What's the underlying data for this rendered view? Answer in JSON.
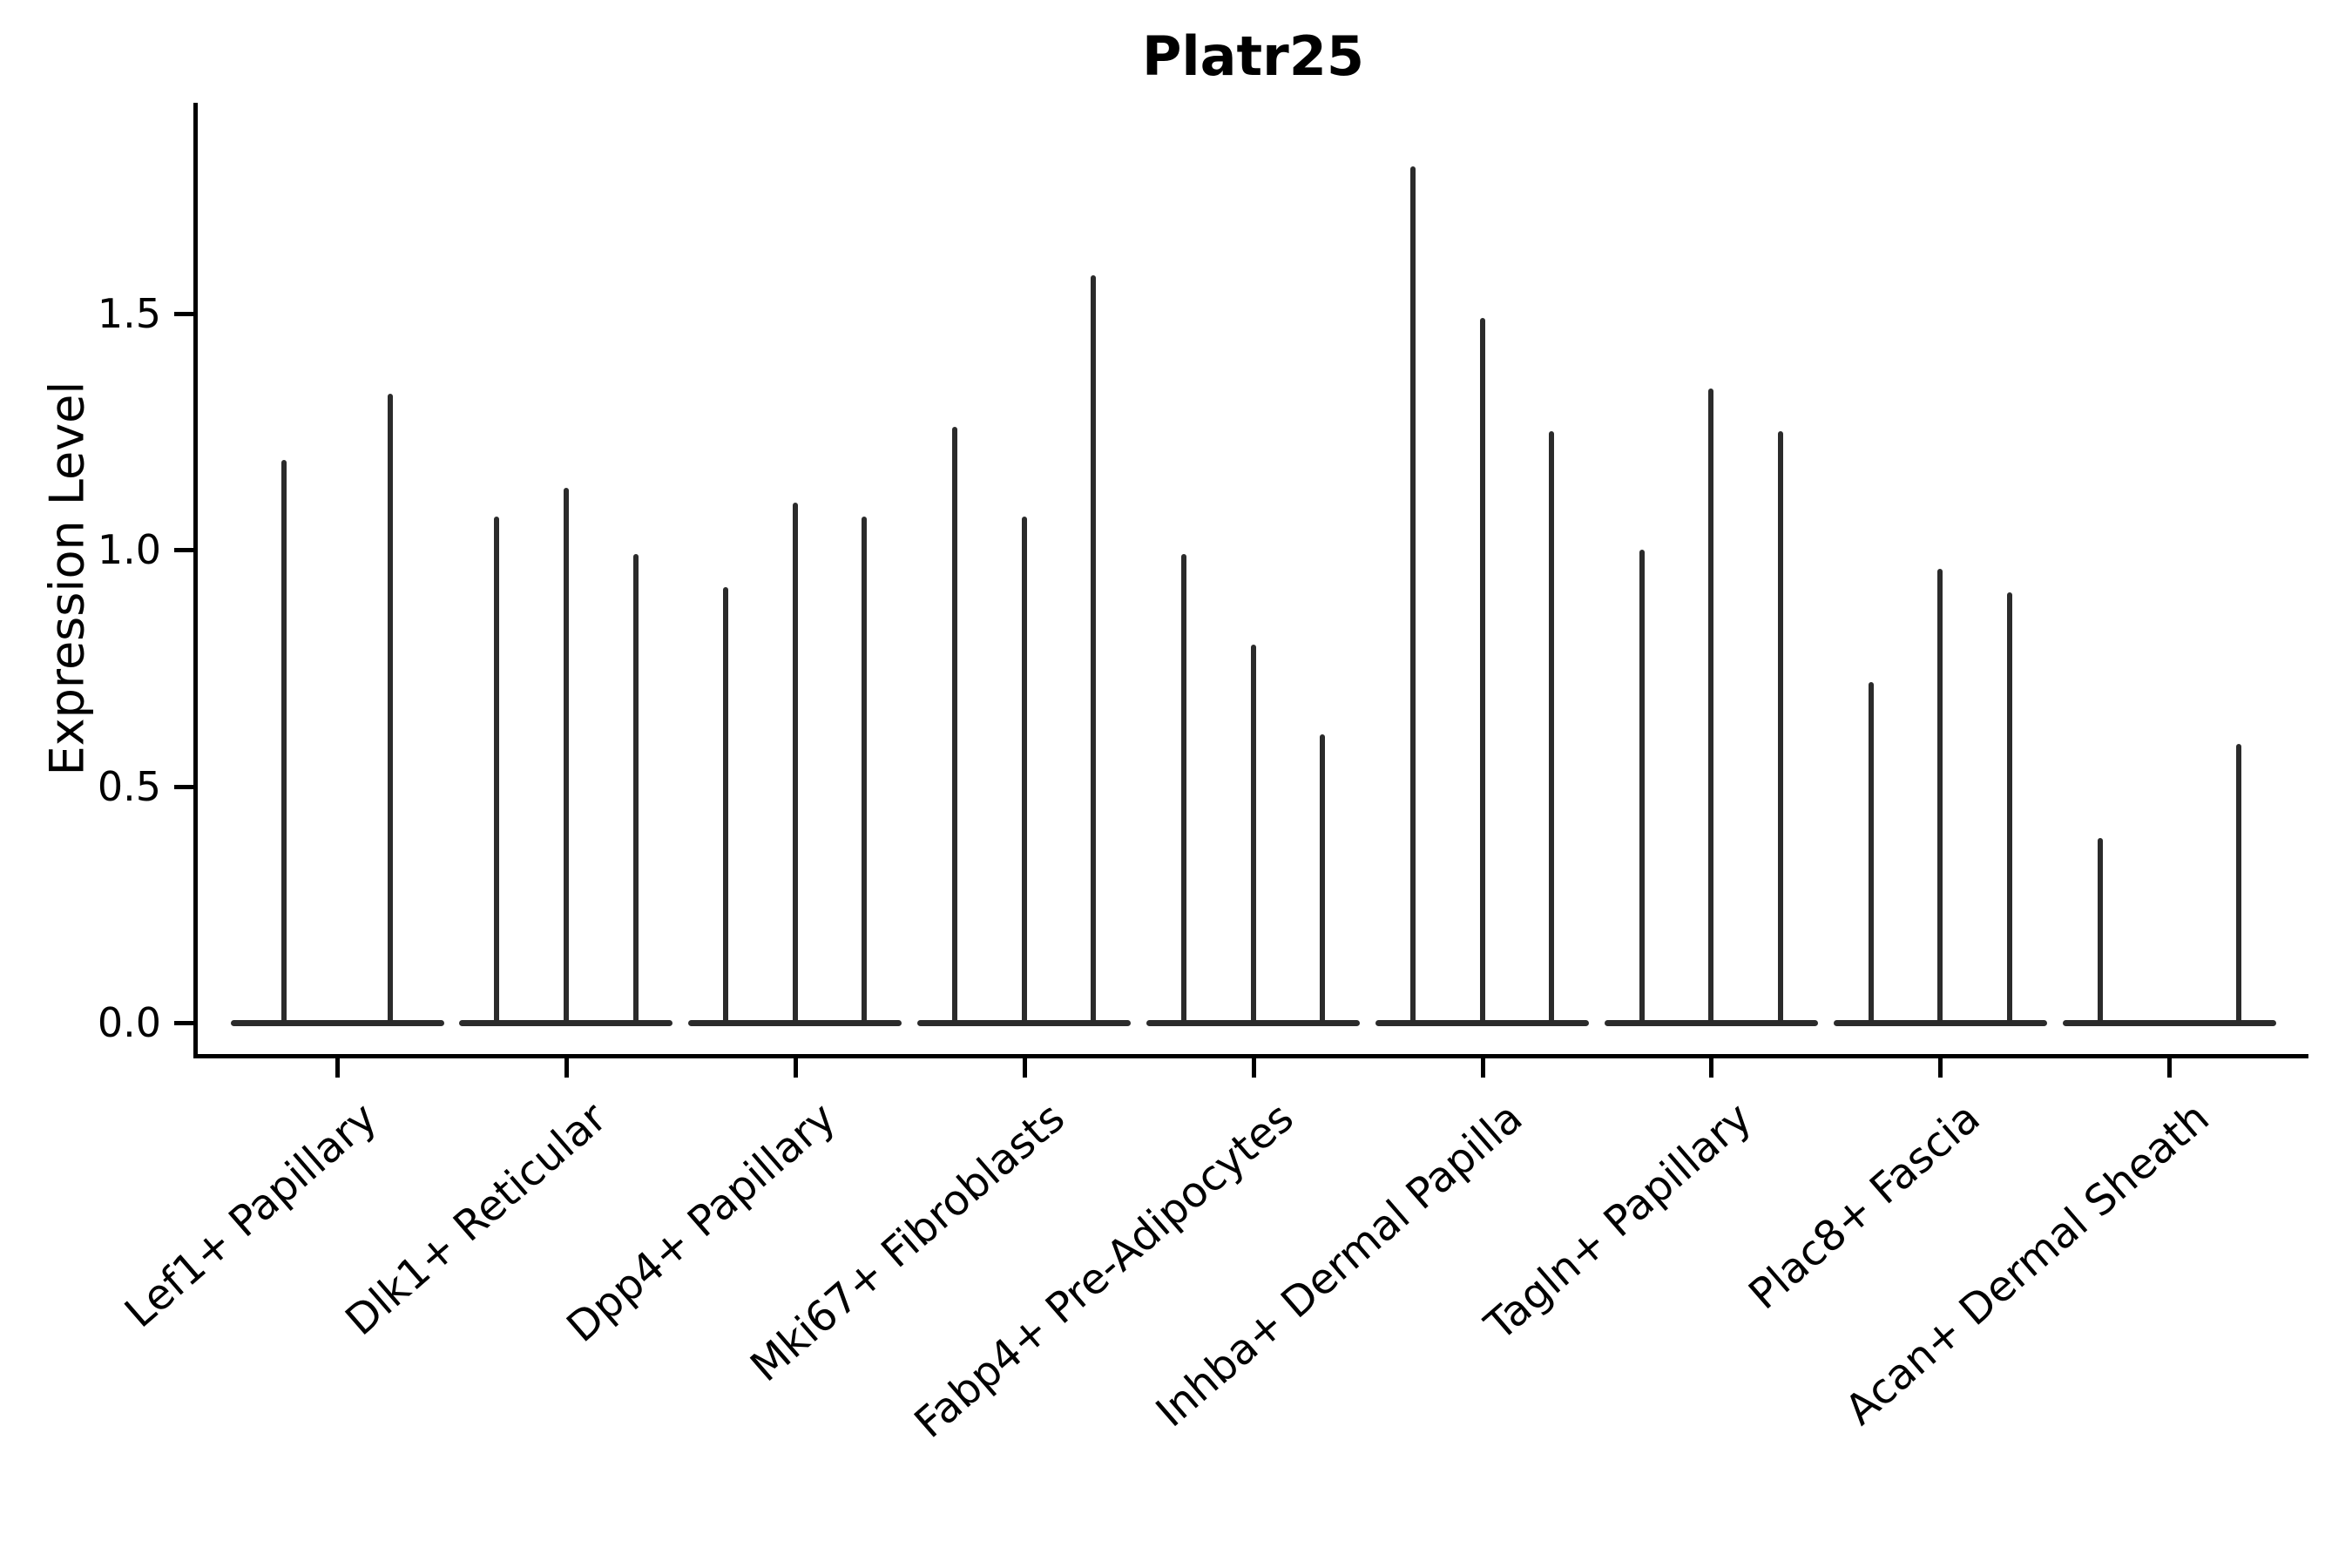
{
  "chart_data": {
    "type": "violin",
    "title": "Platr25",
    "ylabel": "Expression Level",
    "xlabel": "",
    "yticks": [
      0.0,
      0.5,
      1.0,
      1.5
    ],
    "ytick_labels": [
      "0.0",
      "0.5",
      "1.0",
      "1.5"
    ],
    "ylim": [
      -0.07,
      1.95
    ],
    "grid": false,
    "legend": "none",
    "x_tick_rotation_deg": 41,
    "description": "Per cell-type groups of thin violins; each violin is massed at 0 with a thin spike up to its maximum expression value.",
    "categories": [
      "Lef1+ Papillary",
      "Dlk1+ Reticular",
      "Dpp4+ Papillary",
      "Mki67+ Fibroblasts",
      "Fabp4+ Pre-Adipocytes",
      "Inhba+ Dermal Papilla",
      "Tagln+ Papillary",
      "Plac8+ Fascia",
      "Acan+ Dermal Sheath"
    ],
    "groups": [
      {
        "category": "Lef1+ Papillary",
        "violins": [
          {
            "pos": 0.25,
            "max": 1.19
          },
          {
            "pos": 0.75,
            "max": 1.33
          }
        ]
      },
      {
        "category": "Dlk1+ Reticular",
        "violins": [
          {
            "pos": 0.175,
            "max": 1.07
          },
          {
            "pos": 0.5,
            "max": 1.13
          },
          {
            "pos": 0.825,
            "max": 0.99
          }
        ]
      },
      {
        "category": "Dpp4+ Papillary",
        "violins": [
          {
            "pos": 0.175,
            "max": 0.92
          },
          {
            "pos": 0.5,
            "max": 1.1
          },
          {
            "pos": 0.825,
            "max": 1.07
          }
        ]
      },
      {
        "category": "Mki67+ Fibroblasts",
        "violins": [
          {
            "pos": 0.175,
            "max": 1.26
          },
          {
            "pos": 0.5,
            "max": 1.07
          },
          {
            "pos": 0.825,
            "max": 1.58
          }
        ]
      },
      {
        "category": "Fabp4+ Pre-Adipocytes",
        "violins": [
          {
            "pos": 0.175,
            "max": 0.99
          },
          {
            "pos": 0.5,
            "max": 0.8
          },
          {
            "pos": 0.825,
            "max": 0.61
          }
        ]
      },
      {
        "category": "Inhba+ Dermal Papilla",
        "violins": [
          {
            "pos": 0.175,
            "max": 1.81
          },
          {
            "pos": 0.5,
            "max": 1.49
          },
          {
            "pos": 0.825,
            "max": 1.25
          }
        ]
      },
      {
        "category": "Tagln+ Papillary",
        "violins": [
          {
            "pos": 0.175,
            "max": 1.0
          },
          {
            "pos": 0.5,
            "max": 1.34
          },
          {
            "pos": 0.825,
            "max": 1.25
          }
        ]
      },
      {
        "category": "Plac8+ Fascia",
        "violins": [
          {
            "pos": 0.175,
            "max": 0.72
          },
          {
            "pos": 0.5,
            "max": 0.96
          },
          {
            "pos": 0.825,
            "max": 0.91
          }
        ]
      },
      {
        "category": "Acan+ Dermal Sheath",
        "violins": [
          {
            "pos": 0.175,
            "max": 0.39
          },
          {
            "pos": 0.825,
            "max": 0.59
          }
        ]
      }
    ],
    "colors": {
      "violin": "#2b2b2b",
      "axis": "#000000",
      "text": "#000000",
      "background": "#ffffff"
    }
  }
}
